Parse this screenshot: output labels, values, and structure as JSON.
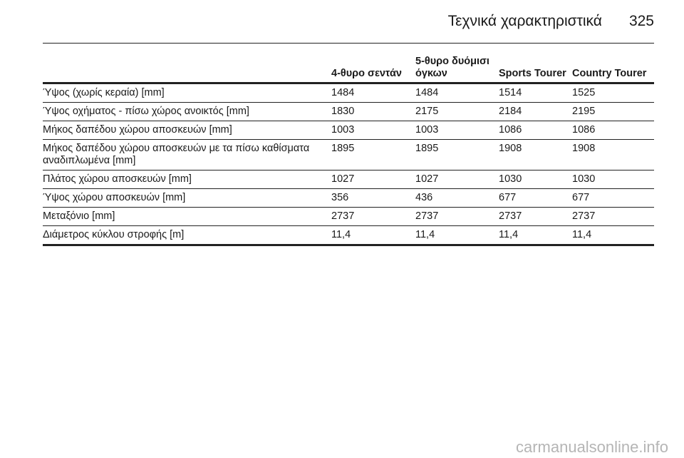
{
  "header": {
    "title": "Τεχνικά χαρακτηριστικά",
    "page": "325"
  },
  "table": {
    "columns": [
      "",
      "4-θυρο σεντάν",
      "5-θυρο δυόμισι όγκων",
      "Sports Tourer",
      "Country Tourer"
    ],
    "rows": [
      [
        "Ύψος (χωρίς κεραία) [mm]",
        "1484",
        "1484",
        "1514",
        "1525"
      ],
      [
        "Ύψος οχήματος - πίσω χώρος ανοικτός [mm]",
        "1830",
        "2175",
        "2184",
        "2195"
      ],
      [
        "Μήκος δαπέδου χώρου αποσκευών [mm]",
        "1003",
        "1003",
        "1086",
        "1086"
      ],
      [
        "Μήκος δαπέδου χώρου αποσκευών με τα πίσω καθίσματα αναδιπλωμένα [mm]",
        "1895",
        "1895",
        "1908",
        "1908"
      ],
      [
        "Πλάτος χώρου αποσκευών [mm]",
        "1027",
        "1027",
        "1030",
        "1030"
      ],
      [
        "Ύψος χώρου αποσκευών [mm]",
        "356",
        "436",
        "677",
        "677"
      ],
      [
        "Μεταξόνιο [mm]",
        "2737",
        "2737",
        "2737",
        "2737"
      ],
      [
        "Διάμετρος κύκλου στροφής [m]",
        "11,4",
        "11,4",
        "11,4",
        "11,4"
      ]
    ]
  },
  "watermark": "carmanualsonline.info"
}
